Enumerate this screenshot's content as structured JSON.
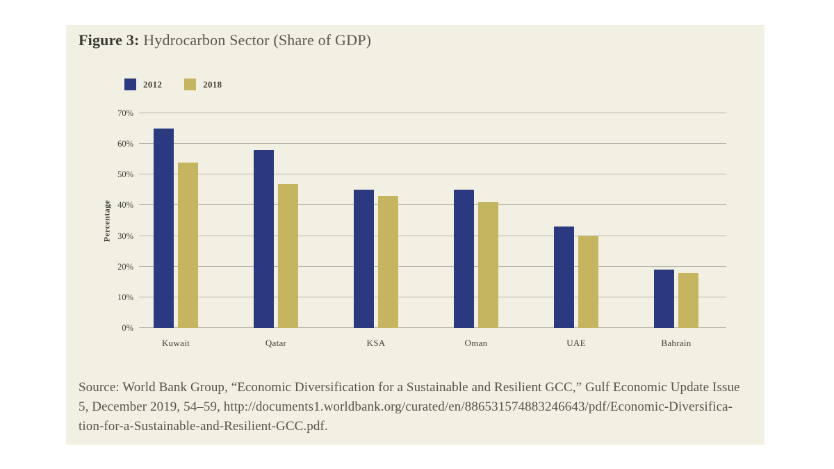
{
  "figure": {
    "label": "Figure 3:",
    "title": " Hydrocarbon Sector (Share of GDP)"
  },
  "chart_data": {
    "type": "bar",
    "title": "Hydrocarbon Sector (Share of GDP)",
    "categories": [
      "Kuwait",
      "Qatar",
      "KSA",
      "Oman",
      "UAE",
      "Bahrain"
    ],
    "series": [
      {
        "name": "2012",
        "color": "#2b3a80",
        "values": [
          65,
          58,
          45,
          45,
          33,
          19
        ]
      },
      {
        "name": "2018",
        "color": "#c6b55f",
        "values": [
          54,
          47,
          43,
          41,
          30,
          18
        ]
      }
    ],
    "xlabel": "",
    "ylabel": "Percentage",
    "ylim": [
      0,
      70
    ],
    "yticks": [
      "0%",
      "10%",
      "20%",
      "30%",
      "40%",
      "50%",
      "60%",
      "70%"
    ],
    "grid": true,
    "legend_position": "top-left"
  },
  "source": {
    "lines": [
      "Source: World Bank Group, “Economic Diversification for a Sustainable and Resilient GCC,” Gulf Economic Update Issue",
      "5, December 2019, 54–59, http://documents1.worldbank.org/curated/en/886531574883246643/pdf/Economic-Diversifica-",
      "tion-for-a-Sustainable-and-Resilient-GCC.pdf."
    ]
  },
  "colors": {
    "panel_background": "#f2f0e2",
    "series_2012": "#2b3a80",
    "series_2018": "#c6b55f",
    "gridline": "#b6b4aa",
    "text": "#3e3d33"
  }
}
